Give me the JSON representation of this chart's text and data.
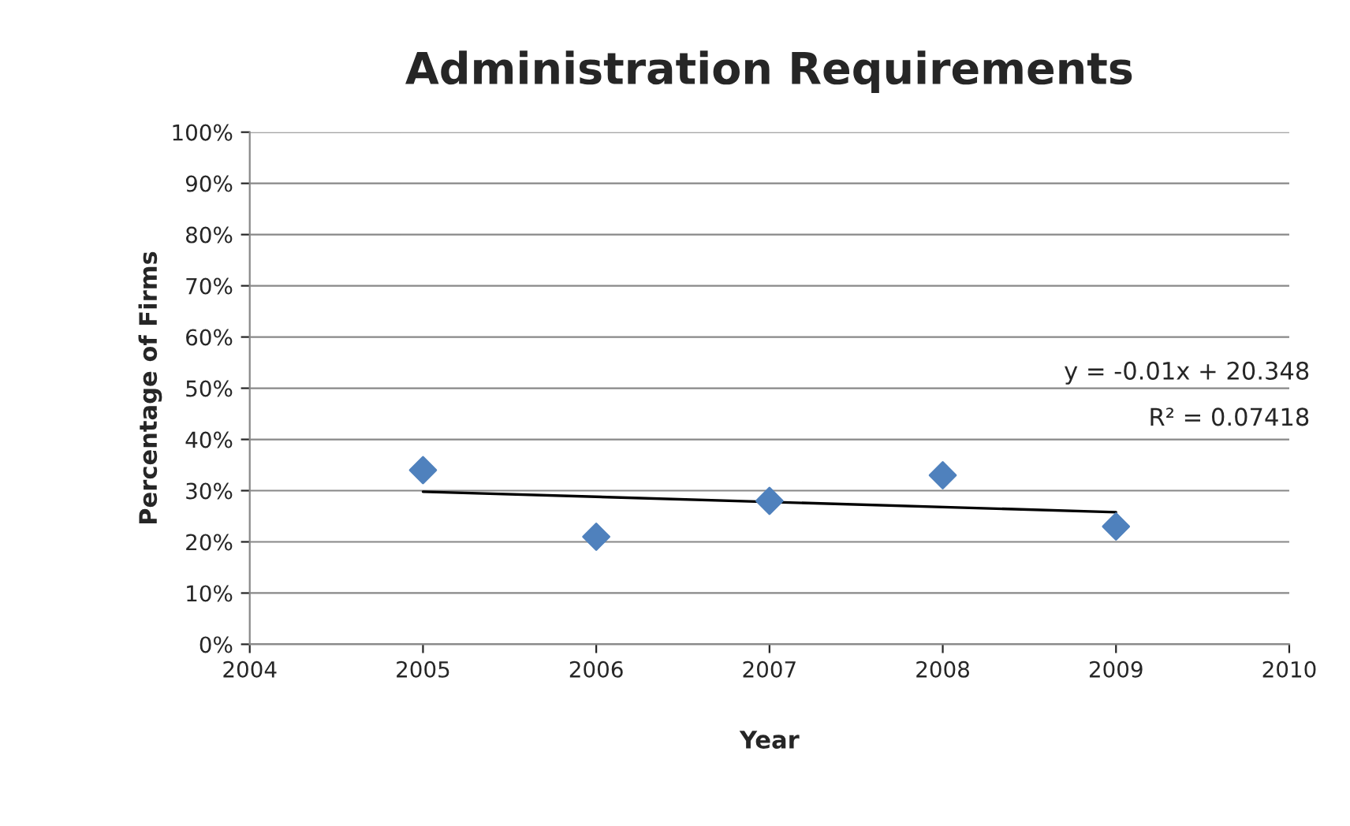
{
  "chart_data": {
    "type": "scatter",
    "title": "Administration Requirements",
    "xlabel": "Year",
    "ylabel": "Percentage of Firms",
    "series": [
      {
        "type": "scatter",
        "color": "#4f81bd",
        "x": [
          2005,
          2006,
          2007,
          2008,
          2009
        ],
        "values": [
          34,
          21,
          28,
          33,
          23
        ],
        "marker": "diamond"
      },
      {
        "type": "line",
        "color": "#000000",
        "x": [
          2005,
          2009
        ],
        "values": [
          29.8,
          25.8
        ],
        "marker": "none"
      }
    ],
    "annotations": [
      "y = -0.01x + 20.348",
      "R² = 0.07418"
    ],
    "xlim": [
      2004,
      2010
    ],
    "xticks": [
      2004,
      2005,
      2006,
      2007,
      2008,
      2009,
      2010
    ],
    "ylim": [
      0,
      100
    ],
    "yticks": [
      {
        "value": 0,
        "label": "0%"
      },
      {
        "value": 10,
        "label": "10%"
      },
      {
        "value": 20,
        "label": "20%"
      },
      {
        "value": 30,
        "label": "30%"
      },
      {
        "value": 40,
        "label": "40%"
      },
      {
        "value": 50,
        "label": "50%"
      },
      {
        "value": 60,
        "label": "60%"
      },
      {
        "value": 70,
        "label": "70%"
      },
      {
        "value": 80,
        "label": "80%"
      },
      {
        "value": 90,
        "label": "90%"
      },
      {
        "value": 100,
        "label": "100%"
      }
    ],
    "grid": "y",
    "legend": false
  }
}
